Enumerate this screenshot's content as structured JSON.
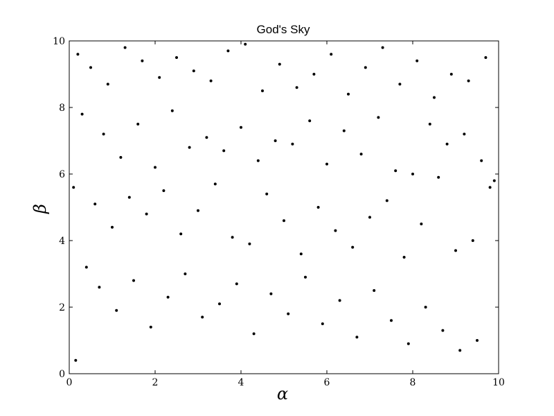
{
  "chart_data": {
    "type": "scatter",
    "title": "God's Sky",
    "xlabel": "α",
    "ylabel": "β",
    "xlim": [
      0,
      10
    ],
    "ylim": [
      0,
      10
    ],
    "xticks": [
      0,
      2,
      4,
      6,
      8,
      10
    ],
    "yticks": [
      0,
      2,
      4,
      6,
      8,
      10
    ],
    "grid": false,
    "marker_color": "#000000",
    "series": [
      {
        "x": [
          0.2,
          0.5,
          0.9,
          1.3,
          1.7,
          2.1,
          2.5,
          2.9,
          3.3,
          3.7,
          4.1,
          4.5,
          4.9,
          5.3,
          5.7,
          6.1,
          6.5,
          6.9,
          7.3,
          7.7,
          8.1,
          8.5,
          8.9,
          9.3,
          9.7,
          0.3,
          0.8,
          1.2,
          1.6,
          2.0,
          2.4,
          2.8,
          3.2,
          3.6,
          4.0,
          4.4,
          4.8,
          5.2,
          5.6,
          6.0,
          6.4,
          6.8,
          7.2,
          7.6,
          8.0,
          8.4,
          8.8,
          9.2,
          9.6,
          9.9,
          0.1,
          0.6,
          1.0,
          1.4,
          1.8,
          2.2,
          2.6,
          3.0,
          3.4,
          3.8,
          4.2,
          4.6,
          5.0,
          5.4,
          5.8,
          6.2,
          6.6,
          7.0,
          7.4,
          7.8,
          8.2,
          8.6,
          9.0,
          9.4,
          9.8,
          0.4,
          0.7,
          1.1,
          1.5,
          1.9,
          2.3,
          2.7,
          3.1,
          3.5,
          3.9,
          4.3,
          4.7,
          5.1,
          5.5,
          5.9,
          6.3,
          6.7,
          7.1,
          7.5,
          7.9,
          8.3,
          8.7,
          9.1,
          9.5,
          0.15
        ],
        "y": [
          9.6,
          9.2,
          8.7,
          9.8,
          9.4,
          8.9,
          9.5,
          9.1,
          8.8,
          9.7,
          9.9,
          8.5,
          9.3,
          8.6,
          9.0,
          9.6,
          8.4,
          9.2,
          9.8,
          8.7,
          9.4,
          8.3,
          9.0,
          8.8,
          9.5,
          7.8,
          7.2,
          6.5,
          7.5,
          6.2,
          7.9,
          6.8,
          7.1,
          6.7,
          7.4,
          6.4,
          7.0,
          6.9,
          7.6,
          6.3,
          7.3,
          6.6,
          7.7,
          6.1,
          6.0,
          7.5,
          6.9,
          7.2,
          6.4,
          5.8,
          5.6,
          5.1,
          4.4,
          5.3,
          4.8,
          5.5,
          4.2,
          4.9,
          5.7,
          4.1,
          3.9,
          5.4,
          4.6,
          3.6,
          5.0,
          4.3,
          3.8,
          4.7,
          5.2,
          3.5,
          4.5,
          5.9,
          3.7,
          4.0,
          5.6,
          3.2,
          2.6,
          1.9,
          2.8,
          1.4,
          2.3,
          3.0,
          1.7,
          2.1,
          2.7,
          1.2,
          2.4,
          1.8,
          2.9,
          1.5,
          2.2,
          1.1,
          2.5,
          1.6,
          0.9,
          2.0,
          1.3,
          0.7,
          1.0,
          0.4
        ]
      }
    ]
  }
}
